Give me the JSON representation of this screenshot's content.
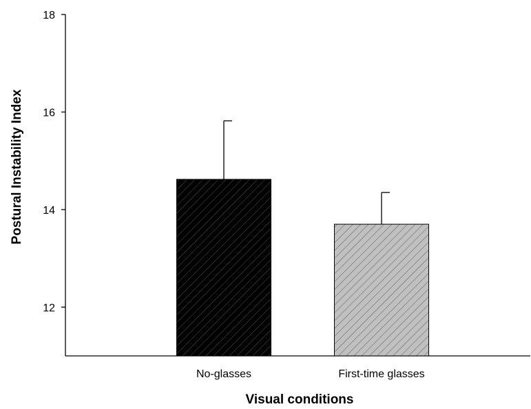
{
  "chart_data": {
    "type": "bar",
    "title": "",
    "xlabel": "Visual conditions",
    "ylabel": "Postural Instability Index",
    "categories": [
      "No-glasses",
      "First-time glasses"
    ],
    "values": [
      14.62,
      13.7
    ],
    "error_upper": [
      15.82,
      14.35
    ],
    "ylim": [
      11,
      18
    ],
    "yticks": [
      12,
      14,
      16,
      18
    ],
    "yticks_labels": [
      "12",
      "14",
      "16",
      "18"
    ],
    "bar_fill_colors": [
      "#000000",
      "#c0c0c0"
    ],
    "bar_pattern": "diagonal-hatch",
    "grid": false,
    "legend": "none"
  }
}
